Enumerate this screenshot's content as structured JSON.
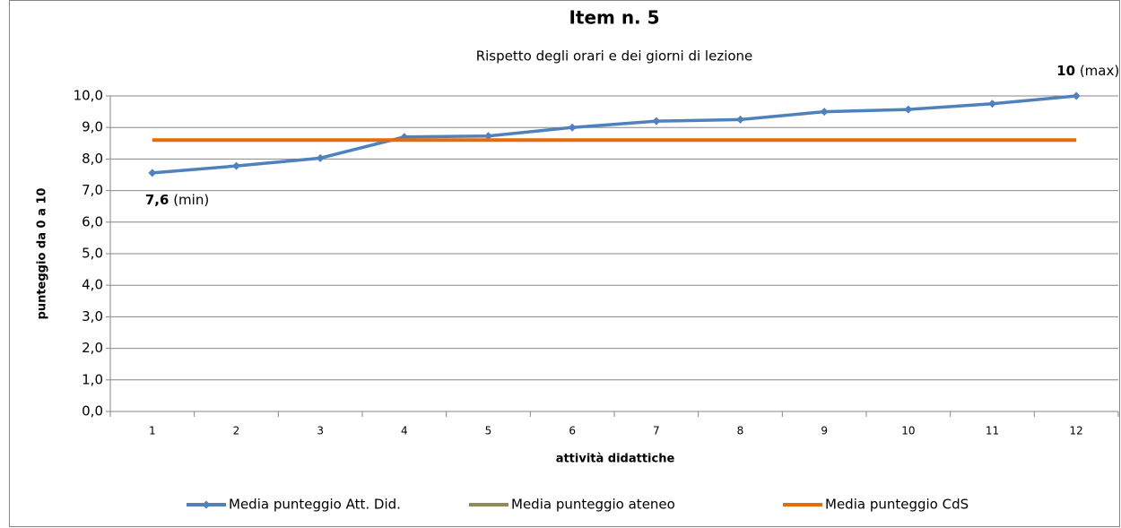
{
  "chart_data": {
    "type": "line",
    "title": "Item n. 5",
    "subtitle": "Rispetto degli orari e dei giorni di lezione",
    "x_label": "attività didattiche",
    "y_label": "punteggio da 0 a 10",
    "categories": [
      "1",
      "2",
      "3",
      "4",
      "5",
      "6",
      "7",
      "8",
      "9",
      "10",
      "11",
      "12"
    ],
    "series": [
      {
        "name": "Media punteggio Att. Did.",
        "color": "#4f81bd",
        "marker": "diamond",
        "values": [
          7.56,
          7.78,
          8.03,
          8.7,
          8.73,
          9.0,
          9.2,
          9.25,
          9.5,
          9.57,
          9.75,
          10.0
        ],
        "value_labels": [
          "7,6",
          null,
          null,
          null,
          null,
          null,
          null,
          null,
          null,
          null,
          null,
          "10"
        ],
        "value_label_notes": [
          "(min)",
          null,
          null,
          null,
          null,
          null,
          null,
          null,
          null,
          null,
          null,
          "(max)"
        ]
      },
      {
        "name": "Media punteggio ateneo",
        "color": "#948a54",
        "values": [
          null,
          null,
          null,
          null,
          null,
          null,
          null,
          null,
          null,
          null,
          null,
          null
        ]
      },
      {
        "name": "Media punteggio CdS",
        "color": "#e46c0a",
        "values": [
          8.6,
          8.6,
          8.6,
          8.6,
          8.6,
          8.6,
          8.6,
          8.6,
          8.6,
          8.6,
          8.6,
          8.6
        ]
      }
    ],
    "ylim": [
      0,
      10
    ],
    "yticks": [
      {
        "value": 0,
        "label": "0,0"
      },
      {
        "value": 1,
        "label": "1,0"
      },
      {
        "value": 2,
        "label": "2,0"
      },
      {
        "value": 3,
        "label": "3,0"
      },
      {
        "value": 4,
        "label": "4,0"
      },
      {
        "value": 5,
        "label": "5,0"
      },
      {
        "value": 6,
        "label": "6,0"
      },
      {
        "value": 7,
        "label": "7,0"
      },
      {
        "value": 8,
        "label": "8,0"
      },
      {
        "value": 9,
        "label": "9,0"
      },
      {
        "value": 10,
        "label": "10,0"
      }
    ],
    "grid": true,
    "legend": "bottom"
  }
}
